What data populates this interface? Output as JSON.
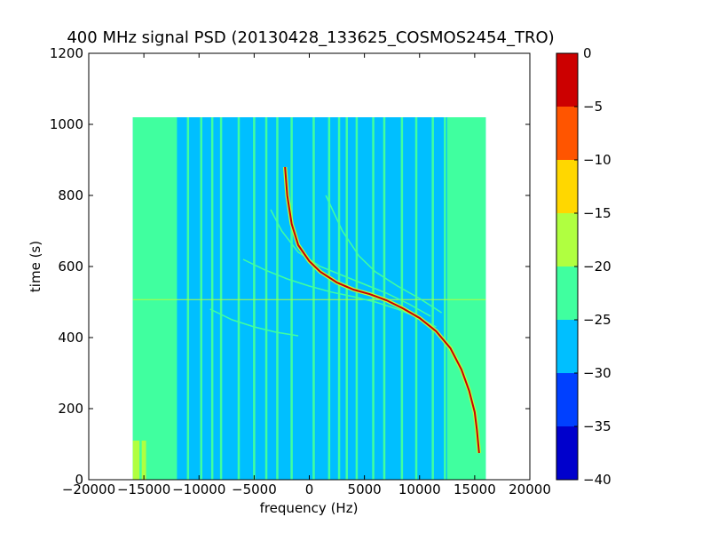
{
  "chart_data": {
    "type": "heatmap",
    "title": "400 MHz signal PSD (20130428_133625_COSMOS2454_TRO)",
    "xlabel": "frequency (Hz)",
    "ylabel": "time (s)",
    "xlim": [
      -20000,
      20000
    ],
    "ylim": [
      0,
      1200
    ],
    "x_ticks": [
      -20000,
      -15000,
      -10000,
      -5000,
      0,
      5000,
      10000,
      15000,
      20000
    ],
    "y_ticks": [
      0,
      200,
      400,
      600,
      800,
      1000,
      1200
    ],
    "x_tick_labels": [
      "−20000",
      "−15000",
      "−10000",
      "−5000",
      "0",
      "5000",
      "10000",
      "15000",
      "20000"
    ],
    "y_tick_labels": [
      "0",
      "200",
      "400",
      "600",
      "800",
      "1000",
      "1200"
    ],
    "data_extent": {
      "x": [
        -16000,
        16000
      ],
      "y": [
        0,
        1020
      ]
    },
    "background_level": -27.5,
    "edge_bands": [
      {
        "x": [
          -16000,
          -12000
        ],
        "level": -22.5
      },
      {
        "x": [
          12500,
          16000
        ],
        "level": -22.5
      }
    ],
    "low_time_region": {
      "x": [
        -16000,
        -14800
      ],
      "y": [
        0,
        110
      ],
      "level": -17.5
    },
    "interference_lines_hz": [
      -15300,
      -14000,
      -12800,
      -11000,
      -9800,
      -8800,
      -8000,
      -6400,
      -5000,
      -3900,
      -2900,
      -1600,
      400,
      1800,
      2700,
      3400,
      4300,
      5800,
      6800,
      8400,
      9700,
      11200,
      12300
    ],
    "horizontal_line_time_s": 507,
    "doppler_track": {
      "level": -2.5,
      "points": [
        [
          -2200,
          880
        ],
        [
          -2000,
          800
        ],
        [
          -1600,
          720
        ],
        [
          -1000,
          660
        ],
        [
          0,
          615
        ],
        [
          1000,
          585
        ],
        [
          2500,
          555
        ],
        [
          4000,
          535
        ],
        [
          5500,
          522
        ],
        [
          7000,
          505
        ],
        [
          8500,
          482
        ],
        [
          10000,
          455
        ],
        [
          11500,
          418
        ],
        [
          12800,
          370
        ],
        [
          13800,
          310
        ],
        [
          14500,
          250
        ],
        [
          15000,
          190
        ],
        [
          15200,
          140
        ],
        [
          15400,
          75
        ]
      ]
    },
    "faint_tracks": [
      {
        "points": [
          [
            -3500,
            760
          ],
          [
            -2500,
            700
          ],
          [
            -1000,
            640
          ],
          [
            1000,
            600
          ],
          [
            3000,
            575
          ],
          [
            5000,
            550
          ],
          [
            7000,
            525
          ],
          [
            9000,
            495
          ],
          [
            11000,
            460
          ]
        ]
      },
      {
        "points": [
          [
            -6000,
            620
          ],
          [
            -4000,
            590
          ],
          [
            -2000,
            565
          ],
          [
            0,
            545
          ],
          [
            2000,
            528
          ],
          [
            4000,
            515
          ],
          [
            6000,
            500
          ],
          [
            8000,
            480
          ],
          [
            10000,
            455
          ],
          [
            11500,
            430
          ]
        ]
      },
      {
        "points": [
          [
            1500,
            800
          ],
          [
            3000,
            700
          ],
          [
            4500,
            630
          ],
          [
            6000,
            585
          ],
          [
            8000,
            545
          ],
          [
            10000,
            510
          ],
          [
            12000,
            470
          ]
        ]
      },
      {
        "points": [
          [
            -9000,
            480
          ],
          [
            -7000,
            450
          ],
          [
            -5000,
            430
          ],
          [
            -3000,
            415
          ],
          [
            -1000,
            405
          ]
        ]
      }
    ],
    "colorbar": {
      "levels": [
        -40,
        -35,
        -30,
        -25,
        -20,
        -15,
        -10,
        -5,
        0
      ],
      "tick_labels": [
        "−40",
        "−35",
        "−30",
        "−25",
        "−20",
        "−15",
        "−10",
        "−5",
        "0"
      ],
      "colors": [
        "#0000cc",
        "#0040ff",
        "#00bfff",
        "#40ff9f",
        "#b0ff40",
        "#ffd700",
        "#ff5500",
        "#cc0000"
      ]
    }
  }
}
